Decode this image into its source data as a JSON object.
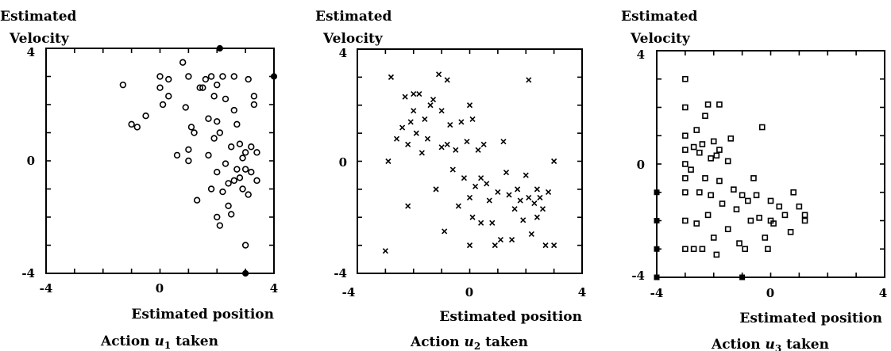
{
  "chart_data": [
    {
      "type": "scatter",
      "ylabel_line1": "Estimated",
      "ylabel_line2": "Velocity",
      "xlabel": "Estimated position",
      "caption_prefix": "Action ",
      "caption_var": "u",
      "caption_sub": "1",
      "caption_suffix": " taken",
      "marker": "circle",
      "xlim": [
        -4,
        4
      ],
      "ylim": [
        -4,
        4
      ],
      "xtick_labels": [
        "-4",
        "0",
        "4"
      ],
      "ytick_labels": [
        "4",
        "0",
        "-4"
      ],
      "points": [
        [
          -1.3,
          2.7
        ],
        [
          -1,
          1.3
        ],
        [
          -0.8,
          1.2
        ],
        [
          -0.5,
          1.6
        ],
        [
          0,
          3
        ],
        [
          0,
          2.6
        ],
        [
          0.1,
          2
        ],
        [
          0.3,
          2.9
        ],
        [
          0.3,
          2.3
        ],
        [
          0.6,
          0.2
        ],
        [
          0.8,
          3.5
        ],
        [
          1,
          3
        ],
        [
          0.9,
          1.9
        ],
        [
          1,
          0.4
        ],
        [
          1,
          0
        ],
        [
          1.1,
          1.2
        ],
        [
          1.2,
          1
        ],
        [
          1.3,
          -1.4
        ],
        [
          1.4,
          2.6
        ],
        [
          1.5,
          2.6
        ],
        [
          1.6,
          2.9
        ],
        [
          1.7,
          1.5
        ],
        [
          1.7,
          0.2
        ],
        [
          1.8,
          3
        ],
        [
          1.8,
          -1
        ],
        [
          1.9,
          2.3
        ],
        [
          1.9,
          0.8
        ],
        [
          2,
          2.7
        ],
        [
          2,
          1.4
        ],
        [
          2,
          -0.4
        ],
        [
          2,
          -2
        ],
        [
          2.1,
          -2.3
        ],
        [
          2.1,
          1
        ],
        [
          2.2,
          3
        ],
        [
          2.2,
          -1.1
        ],
        [
          2.3,
          2.2
        ],
        [
          2.3,
          -0.1
        ],
        [
          2.4,
          -0.8
        ],
        [
          2.4,
          -1.6
        ],
        [
          2.5,
          0.5
        ],
        [
          2.5,
          -1.9
        ],
        [
          2.6,
          1.8
        ],
        [
          2.6,
          3
        ],
        [
          2.6,
          -0.7
        ],
        [
          2.7,
          1.3
        ],
        [
          2.7,
          -0.3
        ],
        [
          2.8,
          0.6
        ],
        [
          2.8,
          -0.6
        ],
        [
          2.9,
          0.1
        ],
        [
          2.9,
          -1
        ],
        [
          3,
          0.3
        ],
        [
          3,
          -0.3
        ],
        [
          3,
          -3
        ],
        [
          3.1,
          2.9
        ],
        [
          3.1,
          -1.2
        ],
        [
          3.2,
          0.5
        ],
        [
          3.2,
          -0.4
        ],
        [
          3.3,
          2.3
        ],
        [
          3.3,
          2
        ],
        [
          3.4,
          0.3
        ],
        [
          3.4,
          -0.7
        ]
      ],
      "edge_points": [
        [
          2.1,
          4
        ],
        [
          4,
          3
        ],
        [
          3,
          -4
        ]
      ]
    },
    {
      "type": "scatter",
      "ylabel_line1": "Estimated",
      "ylabel_line2": "Velocity",
      "xlabel": "Estimated position",
      "caption_prefix": "Action ",
      "caption_var": "u",
      "caption_sub": "2",
      "caption_suffix": " taken",
      "marker": "x",
      "xlim": [
        -4,
        4
      ],
      "ylim": [
        -4,
        4
      ],
      "xtick_labels": [
        "-4",
        "0",
        "4"
      ],
      "ytick_labels": [
        "4",
        "0",
        "-4"
      ],
      "points": [
        [
          -3,
          -3.2
        ],
        [
          -2.9,
          0
        ],
        [
          -2.8,
          3
        ],
        [
          -2.6,
          0.8
        ],
        [
          -2.4,
          1.2
        ],
        [
          -2.3,
          2.3
        ],
        [
          -2.2,
          0.6
        ],
        [
          -2.2,
          -1.6
        ],
        [
          -2.1,
          1.4
        ],
        [
          -2,
          2.4
        ],
        [
          -2,
          1.8
        ],
        [
          -1.9,
          1
        ],
        [
          -1.8,
          2.4
        ],
        [
          -1.7,
          0.3
        ],
        [
          -1.6,
          1.5
        ],
        [
          -1.5,
          0.8
        ],
        [
          -1.4,
          2
        ],
        [
          -1.3,
          2.2
        ],
        [
          -1.2,
          -1
        ],
        [
          -1.1,
          3.1
        ],
        [
          -1,
          1.8
        ],
        [
          -1,
          0.5
        ],
        [
          -0.9,
          -2.5
        ],
        [
          -0.8,
          2.9
        ],
        [
          -0.8,
          0.6
        ],
        [
          -0.7,
          1.3
        ],
        [
          -0.6,
          -0.3
        ],
        [
          -0.5,
          0.4
        ],
        [
          -0.4,
          -1.6
        ],
        [
          -0.3,
          1.4
        ],
        [
          -0.2,
          -0.6
        ],
        [
          -0.1,
          0.7
        ],
        [
          0,
          2
        ],
        [
          0,
          -1.3
        ],
        [
          0,
          -3
        ],
        [
          0.1,
          -2
        ],
        [
          0.1,
          1.5
        ],
        [
          0.2,
          -0.9
        ],
        [
          0.3,
          0.4
        ],
        [
          0.4,
          -0.6
        ],
        [
          0.4,
          -2.2
        ],
        [
          0.5,
          0.6
        ],
        [
          0.6,
          -0.8
        ],
        [
          0.7,
          -1.4
        ],
        [
          0.8,
          -2.2
        ],
        [
          0.9,
          -3
        ],
        [
          1,
          -1.1
        ],
        [
          1.1,
          -2.8
        ],
        [
          1.2,
          0.7
        ],
        [
          1.3,
          -0.4
        ],
        [
          1.4,
          -1.2
        ],
        [
          1.5,
          -2.8
        ],
        [
          1.6,
          -1.7
        ],
        [
          1.7,
          -1
        ],
        [
          1.8,
          -1.4
        ],
        [
          1.9,
          -2.1
        ],
        [
          2,
          -0.5
        ],
        [
          2.1,
          2.9
        ],
        [
          2.1,
          -1.3
        ],
        [
          2.2,
          -2.6
        ],
        [
          2.3,
          -1.5
        ],
        [
          2.4,
          -1
        ],
        [
          2.4,
          -2
        ],
        [
          2.5,
          -1.3
        ],
        [
          2.6,
          -1.7
        ],
        [
          2.7,
          -3
        ],
        [
          2.8,
          -1.1
        ],
        [
          3,
          0
        ],
        [
          3,
          -3
        ]
      ],
      "edge_points": []
    },
    {
      "type": "scatter",
      "ylabel_line1": "Estimated",
      "ylabel_line2": "Velocity",
      "xlabel": "Estimated position",
      "caption_prefix": "Action ",
      "caption_var": "u",
      "caption_sub": "3",
      "caption_suffix": " taken",
      "marker": "square",
      "xlim": [
        -4,
        4
      ],
      "ylim": [
        -4,
        4
      ],
      "xtick_labels": [
        "-4",
        "0",
        "4"
      ],
      "ytick_labels": [
        "4",
        "0",
        "-4"
      ],
      "points": [
        [
          -3,
          3
        ],
        [
          -3,
          2
        ],
        [
          -3,
          1
        ],
        [
          -3,
          0.5
        ],
        [
          -3,
          0
        ],
        [
          -3,
          -0.5
        ],
        [
          -3,
          -1
        ],
        [
          -3,
          -2
        ],
        [
          -3,
          -3
        ],
        [
          -2.8,
          -0.2
        ],
        [
          -2.7,
          0.6
        ],
        [
          -2.7,
          -3
        ],
        [
          -2.6,
          1.2
        ],
        [
          -2.6,
          -2.1
        ],
        [
          -2.5,
          0.4
        ],
        [
          -2.5,
          -1
        ],
        [
          -2.4,
          0.7
        ],
        [
          -2.4,
          -3
        ],
        [
          -2.3,
          1.7
        ],
        [
          -2.3,
          -0.5
        ],
        [
          -2.2,
          2.1
        ],
        [
          -2.2,
          -1.8
        ],
        [
          -2.1,
          0.2
        ],
        [
          -2.1,
          -1.1
        ],
        [
          -2,
          0.8
        ],
        [
          -2,
          -2.6
        ],
        [
          -1.9,
          0.3
        ],
        [
          -1.9,
          -3.2
        ],
        [
          -1.8,
          2.1
        ],
        [
          -1.8,
          0.5
        ],
        [
          -1.8,
          -0.6
        ],
        [
          -1.7,
          -1.4
        ],
        [
          -1.5,
          0.1
        ],
        [
          -1.5,
          -2.3
        ],
        [
          -1.4,
          0.9
        ],
        [
          -1.3,
          -0.9
        ],
        [
          -1.2,
          -1.6
        ],
        [
          -1.1,
          -2.8
        ],
        [
          -1,
          -1.1
        ],
        [
          -0.9,
          -3
        ],
        [
          -0.8,
          -1.3
        ],
        [
          -0.7,
          -2
        ],
        [
          -0.6,
          -0.5
        ],
        [
          -0.5,
          -1.1
        ],
        [
          -0.4,
          -1.9
        ],
        [
          -0.3,
          1.3
        ],
        [
          -0.2,
          -2.6
        ],
        [
          -0.1,
          -3
        ],
        [
          0,
          -2
        ],
        [
          0,
          -1.3
        ],
        [
          0.1,
          -2.1
        ],
        [
          0.3,
          -1.5
        ],
        [
          0.5,
          -1.8
        ],
        [
          0.7,
          -2.4
        ],
        [
          0.8,
          -1
        ],
        [
          1,
          -1.5
        ],
        [
          1.2,
          -1.8
        ],
        [
          1.2,
          -2
        ]
      ],
      "edge_points": [
        [
          -4,
          -1
        ],
        [
          -4,
          -2
        ],
        [
          -4,
          -3
        ],
        [
          -4,
          -4
        ],
        [
          -1,
          -4
        ]
      ]
    }
  ]
}
